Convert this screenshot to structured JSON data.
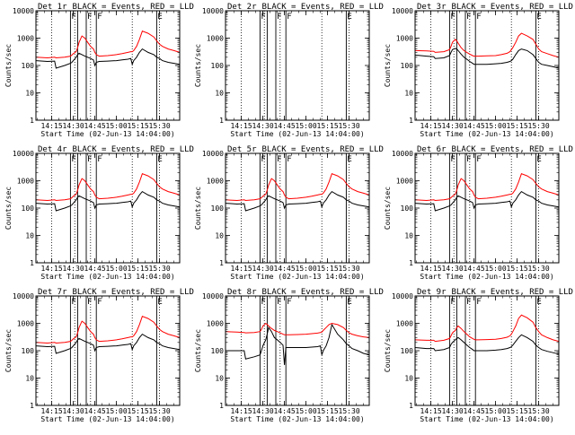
{
  "colors": {
    "events": "#000000",
    "lld": "#ff0000",
    "axis": "#000000"
  },
  "legend_text": "BLACK = Events, RED = LLD",
  "chart_data": {
    "type": "line",
    "ylabel": "Counts/sec",
    "xlabel": "Start Time (02-Jun-13 14:04:00)",
    "y_scale": "log",
    "ylim": [
      1,
      10000
    ],
    "xlim_minutes_after_start": [
      0,
      100
    ],
    "y_tick_labels": [
      "1",
      "10",
      "100",
      "1000",
      "10000"
    ],
    "x_tick_labels": [
      "14:15",
      "14:30",
      "14:45",
      "15:00",
      "15:15",
      "15:30"
    ],
    "x_tick_minutes": [
      11,
      26,
      41,
      56,
      71,
      86
    ],
    "dotted_lines_minutes": [
      11,
      27,
      38,
      67,
      86
    ],
    "profile_minutes": [
      0,
      8,
      13,
      14,
      20,
      24,
      25,
      26,
      28,
      29,
      30,
      32,
      34,
      36,
      38,
      40,
      41,
      42,
      44,
      50,
      56,
      60,
      64,
      66,
      67,
      68,
      70,
      72,
      74,
      78,
      82,
      84,
      86,
      88,
      92,
      96,
      100
    ],
    "panels": [
      {
        "title": "Det 1r",
        "flag_lines": [
          {
            "minute": 24,
            "label": "F"
          },
          {
            "minute": 29,
            "label": ""
          },
          {
            "minute": 35,
            "label": "F"
          },
          {
            "minute": 42,
            "label": "F"
          },
          {
            "minute": 84,
            "label": "E"
          }
        ],
        "series": [
          {
            "name": "Events",
            "color": "#000000",
            "values": [
              150,
              140,
              145,
              80,
              100,
              120,
              130,
              150,
              200,
              250,
              280,
              250,
              220,
              200,
              180,
              160,
              100,
              130,
              140,
              145,
              150,
              160,
              170,
              180,
              110,
              150,
              200,
              300,
              400,
              300,
              250,
              200,
              180,
              150,
              130,
              120,
              110
            ]
          },
          {
            "name": "LLD",
            "color": "#ff0000",
            "values": [
              200,
              190,
              200,
              190,
              200,
              220,
              240,
              270,
              320,
              450,
              700,
              1200,
              1000,
              700,
              500,
              400,
              300,
              250,
              220,
              230,
              250,
              270,
              300,
              320,
              320,
              350,
              500,
              900,
              1800,
              1500,
              1100,
              800,
              600,
              500,
              400,
              350,
              300
            ]
          }
        ]
      },
      {
        "title": "Det 2r",
        "flag_lines": [
          {
            "minute": 24,
            "label": "F"
          },
          {
            "minute": 29,
            "label": ""
          },
          {
            "minute": 35,
            "label": "F"
          },
          {
            "minute": 42,
            "label": "F"
          },
          {
            "minute": 84,
            "label": "E"
          }
        ],
        "series": []
      },
      {
        "title": "Det 3r",
        "flag_lines": [
          {
            "minute": 24,
            "label": "F"
          },
          {
            "minute": 29,
            "label": ""
          },
          {
            "minute": 35,
            "label": "F"
          },
          {
            "minute": 42,
            "label": "F"
          },
          {
            "minute": 84,
            "label": "E"
          }
        ],
        "series": [
          {
            "name": "Events",
            "color": "#000000",
            "values": [
              240,
              220,
              210,
              180,
              190,
              230,
              300,
              380,
              420,
              400,
              350,
              260,
              200,
              170,
              140,
              120,
              110,
              110,
              110,
              110,
              115,
              120,
              130,
              140,
              150,
              170,
              250,
              350,
              400,
              350,
              250,
              180,
              130,
              110,
              100,
              90,
              80
            ]
          },
          {
            "name": "LLD",
            "color": "#ff0000",
            "values": [
              350,
              340,
              330,
              300,
              320,
              380,
              500,
              700,
              900,
              800,
              650,
              450,
              350,
              300,
              260,
              230,
              220,
              220,
              220,
              225,
              230,
              250,
              280,
              320,
              380,
              450,
              700,
              1200,
              1500,
              1200,
              900,
              600,
              400,
              320,
              270,
              230,
              200
            ]
          }
        ]
      },
      {
        "title": "Det 4r",
        "flag_lines": [
          {
            "minute": 24,
            "label": "F"
          },
          {
            "minute": 29,
            "label": ""
          },
          {
            "minute": 35,
            "label": "F"
          },
          {
            "minute": 42,
            "label": "F"
          },
          {
            "minute": 84,
            "label": "E"
          }
        ],
        "series": [
          {
            "name": "Events",
            "color": "#000000",
            "values": [
              150,
              140,
              145,
              80,
              100,
              120,
              130,
              150,
              200,
              250,
              280,
              250,
              220,
              200,
              180,
              160,
              100,
              130,
              140,
              145,
              150,
              160,
              170,
              180,
              110,
              150,
              200,
              300,
              400,
              300,
              250,
              200,
              180,
              150,
              130,
              120,
              110
            ]
          },
          {
            "name": "LLD",
            "color": "#ff0000",
            "values": [
              200,
              190,
              200,
              190,
              200,
              220,
              240,
              270,
              320,
              450,
              700,
              1200,
              1000,
              700,
              500,
              400,
              300,
              250,
              220,
              230,
              250,
              270,
              300,
              320,
              320,
              350,
              500,
              900,
              1800,
              1500,
              1100,
              800,
              600,
              500,
              400,
              350,
              300
            ]
          }
        ]
      },
      {
        "title": "Det 5r",
        "flag_lines": [
          {
            "minute": 24,
            "label": "F"
          },
          {
            "minute": 29,
            "label": ""
          },
          {
            "minute": 35,
            "label": "F"
          },
          {
            "minute": 42,
            "label": "F"
          },
          {
            "minute": 84,
            "label": "E"
          }
        ],
        "series": [
          {
            "name": "Events",
            "color": "#000000",
            "values": [
              150,
              140,
              145,
              80,
              100,
              120,
              130,
              150,
              200,
              250,
              280,
              250,
              220,
              200,
              180,
              160,
              100,
              130,
              140,
              145,
              150,
              160,
              170,
              180,
              110,
              150,
              200,
              300,
              400,
              300,
              250,
              200,
              180,
              150,
              130,
              120,
              110
            ]
          },
          {
            "name": "LLD",
            "color": "#ff0000",
            "values": [
              200,
              190,
              200,
              190,
              200,
              220,
              240,
              270,
              320,
              450,
              700,
              1200,
              1000,
              700,
              500,
              400,
              300,
              250,
              220,
              230,
              250,
              270,
              300,
              320,
              320,
              350,
              500,
              900,
              1800,
              1500,
              1100,
              800,
              600,
              500,
              400,
              350,
              300
            ]
          }
        ]
      },
      {
        "title": "Det 6r",
        "flag_lines": [
          {
            "minute": 24,
            "label": "F"
          },
          {
            "minute": 29,
            "label": ""
          },
          {
            "minute": 35,
            "label": "F"
          },
          {
            "minute": 42,
            "label": "F"
          },
          {
            "minute": 84,
            "label": "E"
          }
        ],
        "series": [
          {
            "name": "Events",
            "color": "#000000",
            "values": [
              150,
              140,
              145,
              80,
              100,
              120,
              130,
              150,
              200,
              250,
              280,
              250,
              220,
              200,
              180,
              160,
              100,
              130,
              140,
              145,
              150,
              160,
              170,
              180,
              110,
              150,
              200,
              300,
              400,
              300,
              250,
              200,
              180,
              150,
              130,
              120,
              110
            ]
          },
          {
            "name": "LLD",
            "color": "#ff0000",
            "values": [
              200,
              190,
              200,
              190,
              200,
              220,
              240,
              270,
              320,
              450,
              700,
              1200,
              1000,
              700,
              500,
              400,
              300,
              250,
              220,
              230,
              250,
              270,
              300,
              320,
              320,
              350,
              500,
              900,
              1800,
              1500,
              1100,
              800,
              600,
              500,
              400,
              350,
              300
            ]
          }
        ]
      },
      {
        "title": "Det 7r",
        "flag_lines": [
          {
            "minute": 24,
            "label": "F"
          },
          {
            "minute": 29,
            "label": ""
          },
          {
            "minute": 35,
            "label": "F"
          },
          {
            "minute": 42,
            "label": "F"
          },
          {
            "minute": 84,
            "label": "E"
          }
        ],
        "series": [
          {
            "name": "Events",
            "color": "#000000",
            "values": [
              150,
              140,
              145,
              80,
              100,
              120,
              130,
              150,
              200,
              250,
              280,
              250,
              220,
              200,
              180,
              160,
              100,
              130,
              140,
              145,
              150,
              160,
              170,
              180,
              110,
              150,
              200,
              300,
              400,
              300,
              250,
              200,
              180,
              150,
              130,
              120,
              110
            ]
          },
          {
            "name": "LLD",
            "color": "#ff0000",
            "values": [
              200,
              190,
              200,
              190,
              200,
              220,
              240,
              270,
              320,
              450,
              700,
              1200,
              1000,
              700,
              500,
              400,
              300,
              250,
              220,
              230,
              250,
              270,
              300,
              320,
              320,
              350,
              500,
              900,
              1800,
              1500,
              1100,
              800,
              600,
              500,
              400,
              350,
              300
            ]
          }
        ]
      },
      {
        "title": "Det 8r",
        "flag_lines": [
          {
            "minute": 24,
            "label": "F"
          },
          {
            "minute": 29,
            "label": ""
          },
          {
            "minute": 35,
            "label": "F"
          },
          {
            "minute": 42,
            "label": "F"
          },
          {
            "minute": 84,
            "label": "E"
          }
        ],
        "series": [
          {
            "name": "Events",
            "color": "#000000",
            "values": [
              100,
              100,
              100,
              50,
              60,
              70,
              100,
              150,
              250,
              400,
              700,
              500,
              300,
              250,
              200,
              160,
              30,
              130,
              130,
              130,
              130,
              135,
              140,
              150,
              70,
              100,
              150,
              300,
              900,
              400,
              250,
              180,
              150,
              120,
              100,
              80,
              70
            ]
          },
          {
            "name": "LLD",
            "color": "#ff0000",
            "values": [
              500,
              480,
              460,
              450,
              460,
              500,
              600,
              800,
              1000,
              900,
              800,
              650,
              550,
              500,
              450,
              400,
              380,
              380,
              380,
              390,
              400,
              420,
              440,
              460,
              480,
              550,
              700,
              900,
              1000,
              900,
              700,
              550,
              450,
              400,
              350,
              320,
              300
            ]
          }
        ]
      },
      {
        "title": "Det 9r",
        "flag_lines": [
          {
            "minute": 24,
            "label": "F"
          },
          {
            "minute": 29,
            "label": ""
          },
          {
            "minute": 35,
            "label": "F"
          },
          {
            "minute": 42,
            "label": "F"
          },
          {
            "minute": 84,
            "label": "E"
          }
        ],
        "series": [
          {
            "name": "Events",
            "color": "#000000",
            "values": [
              130,
              120,
              120,
              100,
              110,
              130,
              170,
              200,
              250,
              280,
              300,
              250,
              200,
              160,
              130,
              110,
              100,
              100,
              100,
              100,
              105,
              110,
              120,
              130,
              140,
              160,
              220,
              300,
              380,
              300,
              220,
              160,
              130,
              110,
              95,
              85,
              75
            ]
          },
          {
            "name": "LLD",
            "color": "#ff0000",
            "values": [
              250,
              240,
              240,
              220,
              240,
              280,
              350,
              450,
              550,
              700,
              800,
              650,
              500,
              400,
              320,
              280,
              260,
              250,
              250,
              255,
              260,
              280,
              310,
              350,
              400,
              500,
              800,
              1500,
              2000,
              1600,
              1100,
              700,
              500,
              380,
              300,
              250,
              220
            ]
          }
        ]
      }
    ]
  }
}
